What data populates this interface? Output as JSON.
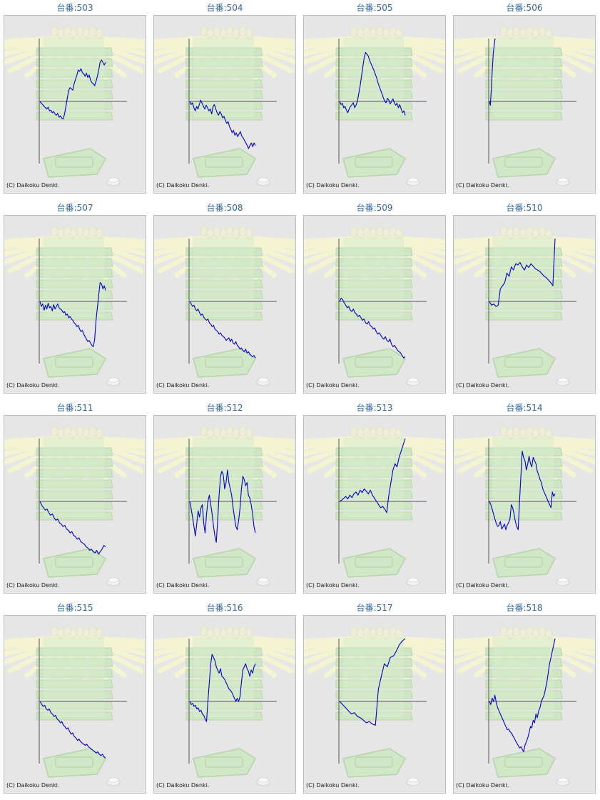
{
  "copyright": "(C) Daikoku Denki.",
  "colors": {
    "line": "#0000cc",
    "axis": "#555555",
    "title": "#336699",
    "panel_bg": "#e6e6e6"
  },
  "chart_data": [
    {
      "type": "line",
      "title": "台番:503",
      "series": [
        {
          "values": [
            0,
            -3,
            -5,
            -8,
            -10,
            -12,
            -9,
            -15,
            -14,
            -18,
            -16,
            -20,
            -22,
            -19,
            -25,
            -23,
            -27,
            -28,
            -20,
            -8,
            5,
            18,
            22,
            20,
            18,
            28,
            35,
            42,
            50,
            48,
            52,
            46,
            44,
            40,
            45,
            38,
            42,
            34,
            30,
            28,
            25,
            32,
            40,
            50,
            62,
            66,
            62,
            58,
            62
          ]
        }
      ]
    },
    {
      "type": "line",
      "title": "台番:504",
      "series": [
        {
          "values": [
            0,
            -5,
            -2,
            -10,
            -15,
            -8,
            -12,
            -5,
            2,
            -3,
            -8,
            -12,
            -6,
            -10,
            -15,
            -12,
            -20,
            -8,
            -5,
            -12,
            -18,
            -22,
            -16,
            -20,
            -26,
            -24,
            -30,
            -35,
            -32,
            -40,
            -44,
            -50,
            -46,
            -54,
            -50,
            -56,
            -52,
            -48,
            -55,
            -58,
            -62,
            -66,
            -70,
            -75,
            -70,
            -66,
            -72,
            -66,
            -70
          ]
        }
      ]
    },
    {
      "type": "line",
      "title": "台番:505",
      "series": [
        {
          "values": [
            0,
            -5,
            -3,
            -10,
            -8,
            -14,
            -18,
            -12,
            -8,
            -5,
            -2,
            -10,
            -6,
            0,
            12,
            25,
            40,
            55,
            70,
            78,
            75,
            72,
            65,
            60,
            55,
            50,
            44,
            38,
            30,
            24,
            18,
            12,
            6,
            0,
            -2,
            5,
            2,
            -4,
            0,
            4,
            -2,
            -6,
            -3,
            -10,
            -5,
            -12,
            -18,
            -15,
            -22
          ]
        }
      ]
    },
    {
      "type": "line",
      "title": "台番:506",
      "series": [
        {
          "values": [
            0,
            -6,
            20,
            50,
            75,
            90,
            100
          ]
        }
      ]
    },
    {
      "type": "line",
      "title": "台番:507",
      "series": [
        {
          "values": [
            0,
            -8,
            -4,
            -14,
            -6,
            -12,
            -3,
            -10,
            -8,
            -15,
            -5,
            -12,
            -8,
            -4,
            -10,
            -12,
            -14,
            -18,
            -16,
            -22,
            -20,
            -26,
            -24,
            -28,
            -30,
            -34,
            -36,
            -40,
            -38,
            -44,
            -48,
            -46,
            -52,
            -56,
            -60,
            -64,
            -62,
            -66,
            -70,
            -72,
            -60,
            -30,
            -10,
            10,
            30,
            28,
            20,
            25,
            18
          ]
        }
      ]
    },
    {
      "type": "line",
      "title": "台番:508",
      "series": [
        {
          "values": [
            0,
            -4,
            -8,
            -6,
            -12,
            -15,
            -12,
            -18,
            -22,
            -20,
            -25,
            -28,
            -30,
            -28,
            -34,
            -36,
            -40,
            -38,
            -44,
            -46,
            -48,
            -52,
            -50,
            -54,
            -56,
            -58,
            -62,
            -60,
            -58,
            -64,
            -60,
            -66,
            -68,
            -64,
            -70,
            -72,
            -76,
            -74,
            -78,
            -80,
            -76,
            -82,
            -80,
            -84,
            -86,
            -88,
            -86,
            -90
          ]
        }
      ]
    },
    {
      "type": "line",
      "title": "台番:509",
      "series": [
        {
          "values": [
            0,
            5,
            3,
            -2,
            -6,
            -10,
            -8,
            -14,
            -16,
            -12,
            -18,
            -20,
            -24,
            -22,
            -26,
            -30,
            -28,
            -34,
            -36,
            -32,
            -38,
            -40,
            -44,
            -42,
            -48,
            -52,
            -50,
            -54,
            -58,
            -60,
            -56,
            -62,
            -64,
            -60,
            -68,
            -72,
            -70,
            -74,
            -78,
            -80,
            -82,
            -86,
            -90,
            -88
          ]
        }
      ]
    },
    {
      "type": "line",
      "title": "台番:510",
      "series": [
        {
          "values": [
            0,
            -6,
            -4,
            -8,
            -6,
            20,
            25,
            30,
            45,
            40,
            55,
            50,
            60,
            58,
            62,
            55,
            50,
            58,
            54,
            60,
            56,
            52,
            50,
            48,
            44,
            40,
            38,
            34,
            30,
            25,
            100
          ]
        }
      ]
    },
    {
      "type": "line",
      "title": "台番:511",
      "series": [
        {
          "values": [
            0,
            -6,
            -10,
            -14,
            -12,
            -18,
            -22,
            -20,
            -26,
            -30,
            -28,
            -34,
            -36,
            -40,
            -38,
            -44,
            -46,
            -50,
            -48,
            -54,
            -56,
            -60,
            -58,
            -64,
            -66,
            -68,
            -72,
            -74,
            -78,
            -76,
            -80,
            -82,
            -78,
            -84,
            -80,
            -76,
            -70,
            -72
          ]
        }
      ]
    },
    {
      "type": "line",
      "title": "台番:512",
      "series": [
        {
          "values": [
            0,
            -12,
            -25,
            -40,
            -55,
            -35,
            -15,
            -25,
            -10,
            -5,
            -35,
            -50,
            -20,
            0,
            10,
            -5,
            -20,
            -40,
            -55,
            -65,
            -30,
            10,
            40,
            48,
            42,
            20,
            30,
            50,
            30,
            20,
            10,
            -10,
            -25,
            -40,
            -45,
            -30,
            -10,
            20,
            40,
            35,
            25,
            30,
            10,
            5,
            -5,
            -20,
            -40,
            -50
          ]
        }
      ]
    },
    {
      "type": "line",
      "title": "台番:513",
      "series": [
        {
          "values": [
            0,
            2,
            5,
            8,
            4,
            10,
            6,
            12,
            15,
            10,
            18,
            14,
            20,
            16,
            12,
            18,
            10,
            5,
            0,
            -5,
            -10,
            -8,
            -12,
            -18,
            10,
            30,
            50,
            60,
            55,
            70,
            80,
            90,
            100
          ]
        }
      ]
    },
    {
      "type": "line",
      "title": "台番:514",
      "series": [
        {
          "values": [
            0,
            -5,
            -12,
            -20,
            -28,
            -35,
            -40,
            -38,
            -32,
            -44,
            -40,
            -36,
            -45,
            -38,
            -34,
            -28,
            -5,
            -10,
            -20,
            -32,
            -40,
            -45,
            0,
            40,
            80,
            70,
            65,
            50,
            60,
            72,
            60,
            55,
            70,
            65,
            60,
            48,
            42,
            35,
            30,
            20,
            15,
            10,
            5,
            0,
            -5,
            -10,
            15,
            8,
            12
          ]
        }
      ]
    },
    {
      "type": "line",
      "title": "台番:515",
      "series": [
        {
          "values": [
            0,
            -4,
            -8,
            -6,
            -12,
            -14,
            -12,
            -18,
            -20,
            -24,
            -22,
            -28,
            -30,
            -34,
            -32,
            -38,
            -40,
            -44,
            -42,
            -48,
            -52,
            -50,
            -56,
            -58,
            -62,
            -60,
            -64,
            -66,
            -68,
            -70,
            -68,
            -72,
            -74,
            -76,
            -78,
            -80,
            -82,
            -80,
            -84,
            -86,
            -84,
            -88,
            -90
          ]
        }
      ]
    },
    {
      "type": "line",
      "title": "台番:516",
      "series": [
        {
          "values": [
            0,
            -5,
            -3,
            -8,
            -6,
            -12,
            -10,
            -16,
            -14,
            -20,
            -22,
            -28,
            -32,
            0,
            30,
            60,
            75,
            70,
            65,
            55,
            50,
            45,
            52,
            40,
            38,
            35,
            30,
            25,
            20,
            18,
            15,
            10,
            5,
            0,
            5,
            0,
            8,
            30,
            50,
            55,
            60,
            52,
            48,
            40,
            50,
            45,
            55,
            60
          ]
        }
      ]
    },
    {
      "type": "line",
      "title": "台番:517",
      "series": [
        {
          "values": [
            0,
            -5,
            -10,
            -15,
            -20,
            -18,
            -24,
            -26,
            -30,
            -34,
            -32,
            -36,
            -38,
            20,
            40,
            60,
            55,
            70,
            72,
            80,
            90,
            96,
            100
          ]
        }
      ]
    },
    {
      "type": "line",
      "title": "台番:518",
      "series": [
        {
          "values": [
            0,
            -5,
            5,
            0,
            10,
            -2,
            -10,
            -15,
            -20,
            -25,
            -30,
            -35,
            -40,
            -45,
            -44,
            -48,
            -50,
            -54,
            -58,
            -62,
            -66,
            -70,
            -74,
            -72,
            -76,
            -80,
            -70,
            -64,
            -58,
            -50,
            -40,
            -42,
            -30,
            -34,
            -20,
            -26,
            -15,
            -10,
            0,
            5,
            10,
            20,
            30,
            45,
            60,
            70,
            80,
            90,
            100
          ]
        }
      ]
    }
  ]
}
